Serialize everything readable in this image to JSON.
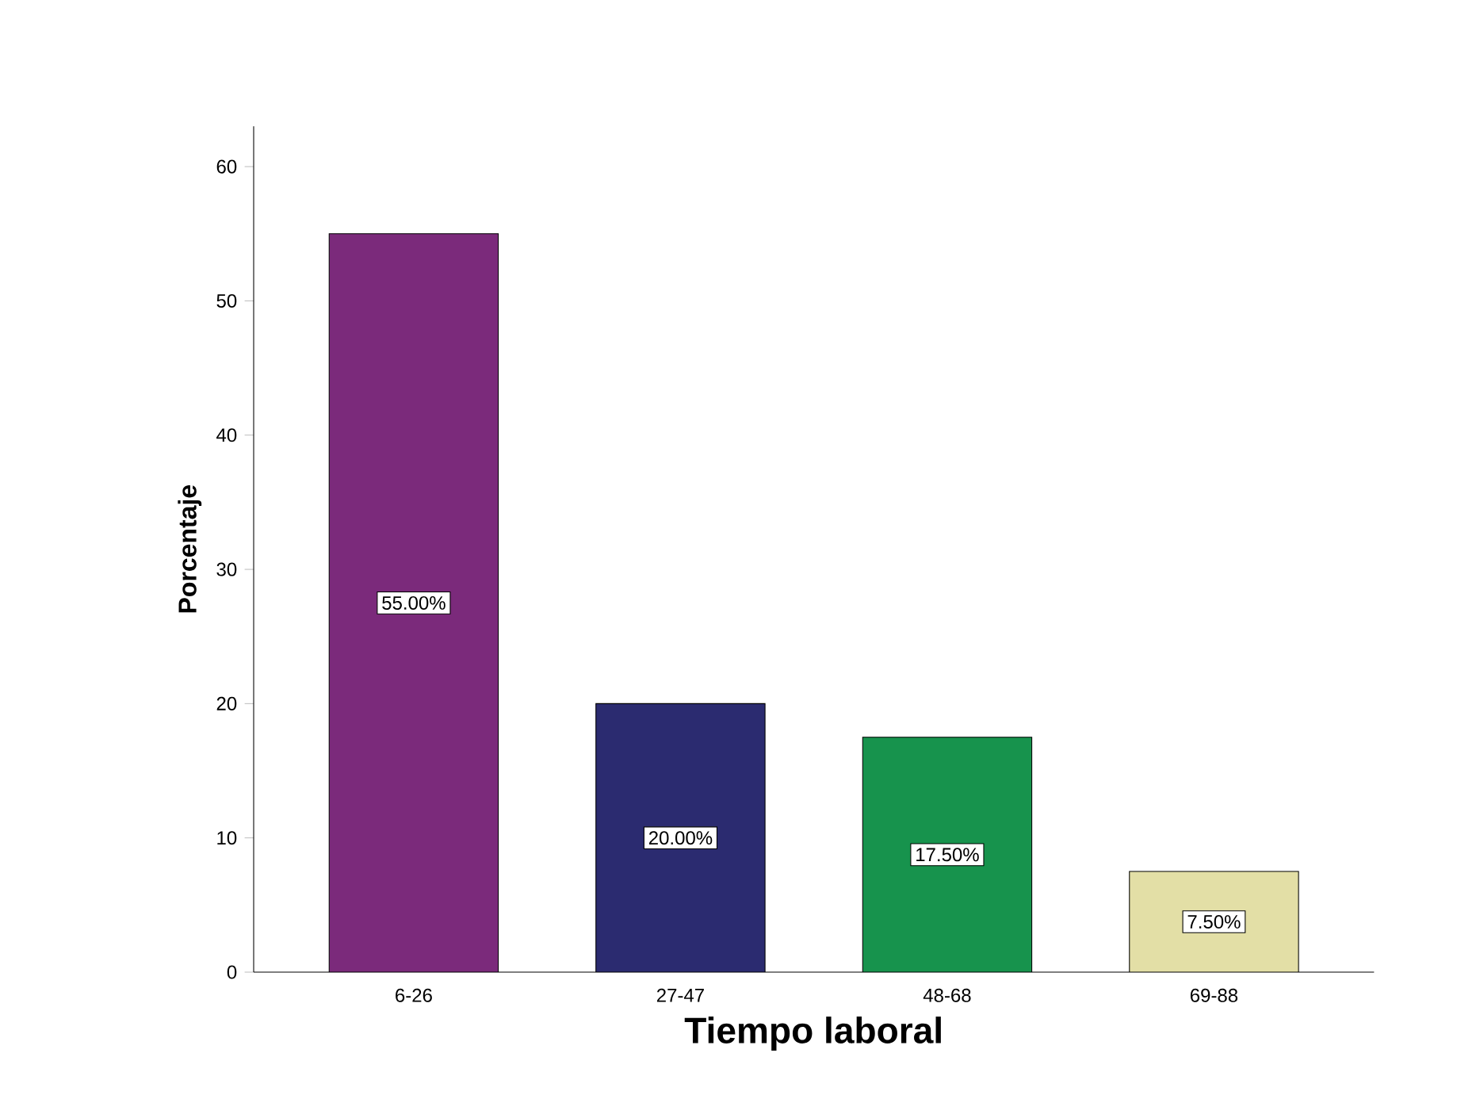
{
  "chart_data": {
    "type": "bar",
    "xlabel": "Tiempo laboral",
    "ylabel": "Porcentaje",
    "categories": [
      "6-26",
      "27-47",
      "48-68",
      "69-88"
    ],
    "values": [
      55,
      20,
      17.5,
      7.5
    ],
    "colors": [
      "#7b2a7b",
      "#2b2b70",
      "#17934d",
      "#e3dfa6"
    ],
    "value_labels": [
      "55.00%",
      "20.00%",
      "17.50%",
      "7.50%"
    ],
    "ylim": [
      0,
      63
    ],
    "yticks": [
      0,
      10,
      20,
      30,
      40,
      50,
      60
    ]
  }
}
